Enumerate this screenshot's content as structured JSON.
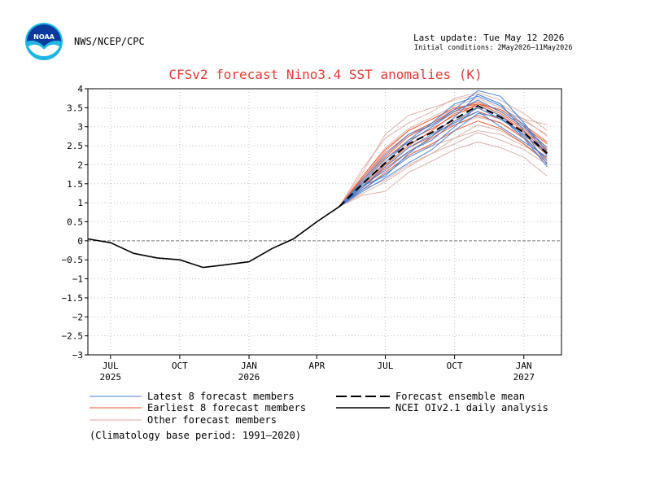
{
  "header": {
    "org": "NWS/NCEP/CPC",
    "last_update": "Last update: Tue May 12 2026",
    "initial_conditions": "Initial conditions: 2May2026−11May2026",
    "logo_text": "NOAA"
  },
  "chart_data": {
    "type": "line",
    "title": "CFSv2 forecast Nino3.4 SST anomalies (K)",
    "xlabel": "",
    "ylabel": "",
    "ylim": [
      -3,
      4
    ],
    "yticks": [
      4,
      3.5,
      3,
      2.5,
      2,
      1.5,
      1,
      0.5,
      0,
      -0.5,
      -1,
      -1.5,
      -2,
      -2.5,
      -3
    ],
    "ytick_labels": [
      "4",
      "3.5",
      "3",
      "2.5",
      "2",
      "1.5",
      "1",
      "0.5",
      "0",
      "−0.5",
      "−1",
      "−1.5",
      "−2",
      "−2.5",
      "−3"
    ],
    "xlim": [
      "2025-06-01",
      "2027-02-20"
    ],
    "xticks": [
      {
        "date": "2025-07-01",
        "label": "JUL",
        "year": "2025"
      },
      {
        "date": "2025-10-01",
        "label": "OCT",
        "year": ""
      },
      {
        "date": "2026-01-01",
        "label": "JAN",
        "year": "2026"
      },
      {
        "date": "2026-04-01",
        "label": "APR",
        "year": ""
      },
      {
        "date": "2026-07-01",
        "label": "JUL",
        "year": ""
      },
      {
        "date": "2026-10-01",
        "label": "OCT",
        "year": ""
      },
      {
        "date": "2027-01-01",
        "label": "JAN",
        "year": "2027"
      }
    ],
    "grid": true,
    "zero_line": true,
    "analysis": {
      "name": "NCEI OIv2.1 daily analysis",
      "color": "#000000",
      "x": [
        "2025-06-01",
        "2025-07-01",
        "2025-08-01",
        "2025-09-01",
        "2025-10-01",
        "2025-11-01",
        "2025-12-01",
        "2026-01-01",
        "2026-02-01",
        "2026-03-01",
        "2026-04-01",
        "2026-05-01"
      ],
      "y": [
        0.05,
        -0.05,
        -0.33,
        -0.45,
        -0.5,
        -0.7,
        -0.63,
        -0.55,
        -0.2,
        0.05,
        0.5,
        0.9
      ]
    },
    "ensemble_mean": {
      "name": "Forecast ensemble mean",
      "color": "#000000",
      "x": [
        "2026-05-01",
        "2026-06-01",
        "2026-07-01",
        "2026-08-01",
        "2026-09-01",
        "2026-10-01",
        "2026-11-01",
        "2026-12-01",
        "2027-01-01",
        "2027-02-01"
      ],
      "y": [
        0.9,
        1.5,
        2.05,
        2.55,
        2.85,
        3.2,
        3.55,
        3.25,
        2.85,
        2.3
      ]
    },
    "member_x": [
      "2026-05-01",
      "2026-06-01",
      "2026-07-01",
      "2026-08-01",
      "2026-09-01",
      "2026-10-01",
      "2026-11-01",
      "2026-12-01",
      "2027-01-01",
      "2027-02-01"
    ],
    "series": [
      {
        "name": "Latest 8 forecast members",
        "color": "#3f7fd6",
        "members": [
          [
            0.9,
            1.45,
            1.7,
            2.3,
            2.75,
            3.25,
            3.85,
            3.6,
            2.9,
            2.0
          ],
          [
            0.9,
            1.35,
            1.75,
            2.2,
            2.5,
            3.0,
            3.55,
            3.3,
            2.75,
            2.1
          ],
          [
            0.9,
            1.6,
            2.25,
            2.8,
            3.05,
            3.45,
            3.95,
            3.8,
            3.1,
            2.35
          ],
          [
            0.9,
            1.4,
            1.95,
            2.45,
            2.8,
            3.1,
            3.4,
            3.0,
            2.6,
            2.2
          ],
          [
            0.9,
            1.55,
            2.15,
            2.6,
            3.0,
            3.4,
            3.7,
            3.4,
            3.0,
            2.45
          ],
          [
            0.9,
            1.3,
            1.65,
            2.05,
            2.4,
            2.9,
            3.35,
            3.25,
            2.7,
            1.95
          ],
          [
            0.9,
            1.5,
            2.05,
            2.65,
            3.1,
            3.6,
            3.8,
            3.55,
            3.05,
            2.25
          ],
          [
            0.9,
            1.45,
            1.85,
            2.35,
            2.65,
            3.15,
            3.5,
            3.2,
            2.8,
            2.3
          ]
        ]
      },
      {
        "name": "Earliest 8 forecast members",
        "color": "#e8562e",
        "members": [
          [
            0.9,
            1.55,
            2.15,
            2.65,
            2.95,
            3.3,
            3.6,
            3.35,
            2.95,
            2.45
          ],
          [
            0.9,
            1.4,
            1.9,
            2.35,
            2.7,
            3.05,
            3.3,
            3.1,
            2.7,
            2.15
          ],
          [
            0.9,
            1.65,
            2.3,
            2.8,
            3.1,
            3.45,
            3.65,
            3.4,
            3.0,
            2.55
          ],
          [
            0.9,
            1.35,
            1.8,
            2.25,
            2.55,
            2.9,
            3.15,
            2.95,
            2.55,
            2.05
          ],
          [
            0.9,
            1.5,
            2.0,
            2.5,
            2.9,
            3.35,
            3.5,
            3.2,
            2.85,
            2.35
          ],
          [
            0.9,
            1.6,
            2.2,
            2.75,
            3.05,
            3.4,
            3.55,
            3.3,
            2.9,
            2.4
          ],
          [
            0.9,
            1.45,
            1.95,
            2.45,
            2.75,
            3.15,
            3.4,
            3.2,
            2.8,
            2.25
          ],
          [
            0.9,
            1.7,
            2.4,
            2.9,
            3.2,
            3.5,
            3.6,
            3.45,
            3.05,
            2.6
          ]
        ]
      },
      {
        "name": "Other forecast members",
        "color": "#d9a79f",
        "members": [
          [
            0.9,
            1.8,
            2.8,
            3.3,
            3.5,
            3.7,
            3.85,
            3.6,
            3.2,
            2.75
          ],
          [
            0.9,
            1.2,
            1.3,
            1.8,
            2.1,
            2.4,
            2.6,
            2.45,
            2.2,
            1.7
          ],
          [
            0.9,
            1.9,
            2.7,
            3.1,
            3.4,
            3.75,
            3.9,
            3.7,
            3.35,
            2.9
          ],
          [
            0.9,
            1.35,
            1.6,
            2.0,
            2.3,
            2.55,
            2.85,
            2.65,
            2.4,
            2.0
          ],
          [
            0.9,
            1.7,
            2.45,
            2.95,
            3.25,
            3.55,
            3.75,
            3.5,
            3.15,
            2.8
          ],
          [
            0.9,
            1.5,
            2.1,
            2.55,
            2.85,
            3.05,
            3.25,
            3.1,
            2.75,
            2.4
          ],
          [
            0.9,
            1.25,
            1.55,
            1.95,
            2.3,
            2.7,
            3.05,
            2.9,
            2.55,
            2.1
          ],
          [
            0.9,
            1.65,
            2.35,
            2.9,
            3.2,
            3.45,
            3.6,
            3.45,
            3.2,
            3.05
          ],
          [
            0.9,
            1.4,
            2.0,
            2.3,
            2.5,
            2.7,
            2.9,
            2.8,
            2.5,
            2.2
          ]
        ]
      }
    ],
    "legend": {
      "placement": "bottom",
      "entries": [
        {
          "label": "Latest 8 forecast members",
          "color": "#3f7fd6",
          "style": "thin"
        },
        {
          "label": "Earliest 8 forecast members",
          "color": "#e8562e",
          "style": "thin"
        },
        {
          "label": "Other forecast members",
          "color": "#d9a79f",
          "style": "thin"
        },
        {
          "label": "Forecast ensemble mean",
          "color": "#000000",
          "style": "dashed"
        },
        {
          "label": "NCEI OIv2.1 daily analysis",
          "color": "#000000",
          "style": "solid"
        }
      ]
    },
    "note": "(Climatology base period: 1991–2020)"
  }
}
